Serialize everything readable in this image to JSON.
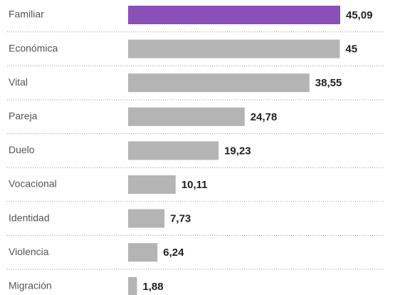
{
  "chart_data": {
    "type": "bar",
    "orientation": "horizontal",
    "categories": [
      "Familiar",
      "Económica",
      "Vital",
      "Pareja",
      "Duelo",
      "Vocacional",
      "Identidad",
      "Violencia",
      "Migración"
    ],
    "values": [
      45.09,
      45,
      38.55,
      24.78,
      19.23,
      10.11,
      7.73,
      6.24,
      1.88
    ],
    "value_labels": [
      "45,09",
      "45",
      "38,55",
      "24,78",
      "19,23",
      "10,11",
      "7,73",
      "6,24",
      "1,88"
    ],
    "colors": [
      "#8b4fb8",
      "#b4b4b4",
      "#b4b4b4",
      "#b4b4b4",
      "#b4b4b4",
      "#b4b4b4",
      "#b4b4b4",
      "#b4b4b4",
      "#b4b4b4"
    ]
  }
}
